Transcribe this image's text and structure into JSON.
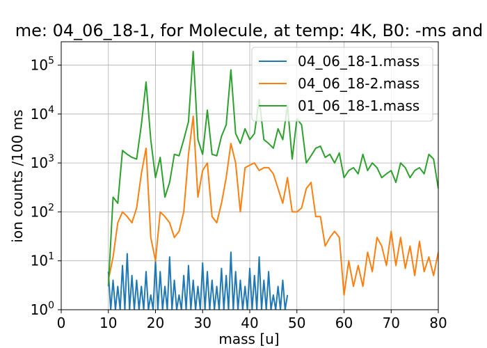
{
  "chart_data": {
    "type": "line",
    "title": "me: 04_06_18-1, for Molecule, at temp: 4K, B0: -ms and",
    "xlabel": "mass [u]",
    "ylabel": "ion counts /100 ms",
    "xlim": [
      0,
      80
    ],
    "ylim": [
      1,
      300000
    ],
    "yscale": "log",
    "grid": true,
    "legend_position": "top-right",
    "x_ticks": [
      0,
      10,
      20,
      30,
      40,
      50,
      60,
      70,
      80
    ],
    "x_tick_labels": [
      "0",
      "10",
      "20",
      "30",
      "40",
      "50",
      "60",
      "70",
      "80"
    ],
    "y_ticks": [
      1,
      10,
      100,
      1000,
      10000,
      100000
    ],
    "y_tick_labels": [
      {
        "base": "10",
        "exp": "0"
      },
      {
        "base": "10",
        "exp": "1"
      },
      {
        "base": "10",
        "exp": "2"
      },
      {
        "base": "10",
        "exp": "3"
      },
      {
        "base": "10",
        "exp": "4"
      },
      {
        "base": "10",
        "exp": "5"
      }
    ],
    "series": [
      {
        "name": "04_06_18-1.mass",
        "color": "#1f77b4",
        "x": [
          10,
          10.5,
          11,
          11.5,
          12,
          12.5,
          13,
          13.5,
          14,
          14.5,
          15,
          15.5,
          16,
          16.5,
          17,
          17.5,
          18,
          18.5,
          19,
          19.5,
          20,
          20.5,
          21,
          21.5,
          22,
          22.5,
          23,
          23.5,
          24,
          24.5,
          25,
          25.5,
          26,
          26.5,
          27,
          27.5,
          28,
          28.5,
          29,
          29.5,
          30,
          30.5,
          31,
          31.5,
          32,
          32.5,
          33,
          33.5,
          34,
          34.5,
          35,
          35.5,
          36,
          36.5,
          37,
          37.5,
          38,
          38.5,
          39,
          39.5,
          40,
          40.5,
          41,
          41.5,
          42,
          42.5,
          43,
          43.5,
          44,
          44.5,
          45,
          45.5,
          46,
          46.5,
          47,
          47.5,
          48
        ],
        "y": [
          6,
          1,
          4,
          1,
          3,
          1,
          8,
          1,
          14,
          1,
          5,
          1,
          4,
          1,
          3,
          1,
          6,
          1,
          2,
          1,
          10,
          1,
          6,
          1,
          3,
          1,
          12,
          1,
          4,
          1,
          2,
          1,
          5,
          1,
          8,
          1,
          4,
          1,
          3,
          1,
          9,
          1,
          6,
          1,
          4,
          1,
          3,
          1,
          7,
          1,
          5,
          1,
          15,
          1,
          6,
          1,
          4,
          1,
          3,
          1,
          7,
          1,
          5,
          1,
          12,
          1,
          4,
          1,
          6,
          1,
          2,
          1,
          3,
          1,
          4,
          1,
          2
        ]
      },
      {
        "name": "04_06_18-2.mass",
        "color": "#ff7f0e",
        "x": [
          10,
          11,
          12,
          13,
          14,
          15,
          16,
          17,
          18,
          19,
          20,
          21,
          22,
          23,
          24,
          25,
          26,
          27,
          28,
          29,
          30,
          31,
          32,
          33,
          34,
          35,
          36,
          37,
          38,
          39,
          40,
          41,
          42,
          43,
          44,
          45,
          46,
          47,
          48,
          49,
          50,
          51,
          52,
          53,
          54,
          55,
          56,
          57,
          58,
          59,
          60,
          61,
          62,
          63,
          64,
          65,
          66,
          67,
          68,
          69,
          70,
          71,
          72,
          73,
          74,
          75,
          76,
          77,
          78,
          79,
          80
        ],
        "y": [
          4,
          12,
          60,
          100,
          80,
          60,
          120,
          600,
          2000,
          30,
          10,
          100,
          80,
          60,
          30,
          40,
          100,
          1500,
          9000,
          200,
          700,
          1000,
          80,
          60,
          150,
          500,
          2500,
          1000,
          100,
          800,
          900,
          1000,
          700,
          800,
          800,
          600,
          300,
          150,
          500,
          100,
          100,
          120,
          300,
          400,
          80,
          80,
          20,
          30,
          40,
          30,
          2,
          10,
          3,
          8,
          3,
          15,
          6,
          30,
          20,
          8,
          40,
          8,
          30,
          7,
          20,
          5,
          25,
          6,
          12,
          5,
          15
        ]
      },
      {
        "name": "01_06_18-1.mass",
        "color": "#2ca02c",
        "x": [
          10,
          11,
          12,
          13,
          14,
          15,
          16,
          17,
          18,
          19,
          20,
          21,
          22,
          23,
          24,
          25,
          26,
          27,
          28,
          29,
          30,
          31,
          32,
          33,
          34,
          35,
          36,
          37,
          38,
          39,
          40,
          41,
          42,
          43,
          44,
          45,
          46,
          47,
          48,
          49,
          50,
          51,
          52,
          53,
          54,
          55,
          56,
          57,
          58,
          59,
          60,
          61,
          62,
          63,
          64,
          65,
          66,
          67,
          68,
          69,
          70,
          71,
          72,
          73,
          74,
          75,
          76,
          77,
          78,
          79,
          80
        ],
        "y": [
          3,
          200,
          150,
          1800,
          1500,
          1300,
          1200,
          6000,
          45000,
          3000,
          500,
          1300,
          200,
          400,
          1500,
          1400,
          3000,
          7000,
          190000,
          3000,
          1500,
          12000,
          1500,
          1400,
          3500,
          6000,
          80000,
          4000,
          2500,
          5000,
          3000,
          4000,
          20000,
          3000,
          2500,
          2000,
          5000,
          3000,
          15000,
          1200,
          8000,
          6000,
          1000,
          1400,
          2000,
          2200,
          1300,
          1500,
          1000,
          1600,
          500,
          700,
          800,
          600,
          1500,
          700,
          1000,
          800,
          500,
          600,
          700,
          400,
          1000,
          800,
          500,
          700,
          800,
          600,
          1500,
          1200,
          300
        ]
      }
    ]
  }
}
